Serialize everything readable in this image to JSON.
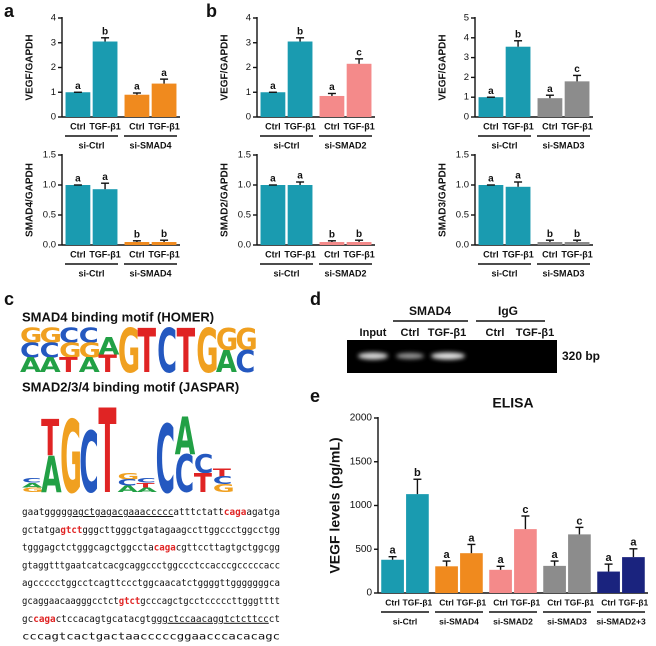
{
  "panel_labels": [
    "a",
    "b",
    "c",
    "d",
    "e"
  ],
  "chart_data": [
    {
      "type": "bar",
      "ylabel": "VEGF/GAPDH",
      "ylim": [
        0,
        4
      ],
      "yticks": [
        0,
        1,
        2,
        3,
        4
      ],
      "categories": [
        "Ctrl",
        "TGF-β1",
        "Ctrl",
        "TGF-β1"
      ],
      "groups": [
        "si-Ctrl",
        "si-SMAD4"
      ],
      "values": [
        1,
        3.05,
        0.9,
        1.35
      ],
      "errors": [
        0,
        0.15,
        0.07,
        0.18
      ],
      "letters": [
        "a",
        "b",
        "a",
        "a"
      ],
      "colors": [
        "#1a9bb0",
        "#1a9bb0",
        "#f08a1e",
        "#f08a1e"
      ]
    },
    {
      "type": "bar",
      "ylabel": "SMAD4/GAPDH",
      "ylim": [
        0,
        1.5
      ],
      "yticks": [
        {
          "value": 0,
          "label": "0.0"
        },
        {
          "value": 0.5,
          "label": "0.5"
        },
        {
          "value": 1,
          "label": "1.0"
        },
        {
          "value": 1.5,
          "label": "1.5"
        }
      ],
      "categories": [
        "Ctrl",
        "TGF-β1",
        "Ctrl",
        "TGF-β1"
      ],
      "groups": [
        "si-Ctrl",
        "si-SMAD4"
      ],
      "values": [
        1.0,
        0.93,
        0.05,
        0.05
      ],
      "errors": [
        0,
        0.1,
        0.02,
        0.03
      ],
      "letters": [
        "a",
        "a",
        "b",
        "b"
      ],
      "colors": [
        "#1a9bb0",
        "#1a9bb0",
        "#f08a1e",
        "#f08a1e"
      ]
    },
    {
      "type": "bar",
      "ylabel": "VEGF/GAPDH",
      "ylim": [
        0,
        4
      ],
      "yticks": [
        0,
        1,
        2,
        3,
        4
      ],
      "categories": [
        "Ctrl",
        "TGF-β1",
        "Ctrl",
        "TGF-β1"
      ],
      "groups": [
        "si-Ctrl",
        "si-SMAD2"
      ],
      "values": [
        1,
        3.05,
        0.85,
        2.15
      ],
      "errors": [
        0,
        0.15,
        0.1,
        0.2
      ],
      "letters": [
        "a",
        "b",
        "a",
        "c"
      ],
      "colors": [
        "#1a9bb0",
        "#1a9bb0",
        "#f48a8a",
        "#f48a8a"
      ]
    },
    {
      "type": "bar",
      "ylabel": "VEGF/GAPDH",
      "ylim": [
        0,
        5
      ],
      "yticks": [
        0,
        1,
        2,
        3,
        4,
        5
      ],
      "categories": [
        "Ctrl",
        "TGF-β1",
        "Ctrl",
        "TGF-β1"
      ],
      "groups": [
        "si-Ctrl",
        "si-SMAD3"
      ],
      "values": [
        1,
        3.55,
        0.95,
        1.8
      ],
      "errors": [
        0,
        0.3,
        0.15,
        0.3
      ],
      "letters": [
        "a",
        "b",
        "a",
        "c"
      ],
      "colors": [
        "#1a9bb0",
        "#1a9bb0",
        "#8c8c8c",
        "#8c8c8c"
      ]
    },
    {
      "type": "bar",
      "ylabel": "SMAD2/GAPDH",
      "ylim": [
        0,
        1.5
      ],
      "yticks": [
        {
          "value": 0,
          "label": "0.0"
        },
        {
          "value": 0.5,
          "label": "0.5"
        },
        {
          "value": 1,
          "label": "1.0"
        },
        {
          "value": 1.5,
          "label": "1.5"
        }
      ],
      "categories": [
        "Ctrl",
        "TGF-β1",
        "Ctrl",
        "TGF-β1"
      ],
      "groups": [
        "si-Ctrl",
        "si-SMAD2"
      ],
      "values": [
        1.0,
        1.0,
        0.05,
        0.05
      ],
      "errors": [
        0,
        0.05,
        0.02,
        0.03
      ],
      "letters": [
        "a",
        "a",
        "b",
        "b"
      ],
      "colors": [
        "#1a9bb0",
        "#1a9bb0",
        "#f48a8a",
        "#f48a8a"
      ]
    },
    {
      "type": "bar",
      "ylabel": "SMAD3/GAPDH",
      "ylim": [
        0,
        1.5
      ],
      "yticks": [
        {
          "value": 0,
          "label": "0.0"
        },
        {
          "value": 0.5,
          "label": "0.5"
        },
        {
          "value": 1,
          "label": "1.0"
        },
        {
          "value": 1.5,
          "label": "1.5"
        }
      ],
      "categories": [
        "Ctrl",
        "TGF-β1",
        "Ctrl",
        "TGF-β1"
      ],
      "groups": [
        "si-Ctrl",
        "si-SMAD3"
      ],
      "values": [
        1.0,
        0.97,
        0.05,
        0.05
      ],
      "errors": [
        0,
        0.08,
        0.03,
        0.03
      ],
      "letters": [
        "a",
        "a",
        "b",
        "b"
      ],
      "colors": [
        "#1a9bb0",
        "#1a9bb0",
        "#8c8c8c",
        "#8c8c8c"
      ]
    },
    {
      "type": "bar",
      "title": "ELISA",
      "ylabel": "VEGF levels (pg/mL)",
      "ylim": [
        0,
        2000
      ],
      "yticks": [
        0,
        500,
        1000,
        1500,
        2000
      ],
      "categories": [
        "Ctrl",
        "TGF-β1",
        "Ctrl",
        "TGF-β1",
        "Ctrl",
        "TGF-β1",
        "Ctrl",
        "TGF-β1",
        "Ctrl",
        "TGF-β1"
      ],
      "groups": [
        "si-Ctrl",
        "si-SMAD4",
        "si-SMAD2",
        "si-SMAD3",
        "si-SMAD2+3"
      ],
      "values": [
        380,
        1130,
        305,
        455,
        265,
        730,
        310,
        670,
        245,
        410
      ],
      "errors": [
        35,
        170,
        60,
        100,
        40,
        150,
        55,
        80,
        85,
        95
      ],
      "letters": [
        "a",
        "b",
        "a",
        "a",
        "a",
        "c",
        "a",
        "c",
        "a",
        "a"
      ],
      "colors": [
        "#1a9bb0",
        "#1a9bb0",
        "#f08a1e",
        "#f08a1e",
        "#f48a8a",
        "#f48a8a",
        "#8c8c8c",
        "#8c8c8c",
        "#1a237e",
        "#1a237e"
      ]
    }
  ],
  "letter_colors": {
    "A": "#22a045",
    "C": "#2458c0",
    "G": "#f0a020",
    "T": "#e02424"
  },
  "motifs": [
    {
      "title": "SMAD4 binding motif (HOMER)",
      "columns": [
        {
          "letters": [
            "G",
            "C",
            "A"
          ],
          "height": 2
        },
        {
          "letters": [
            "G",
            "C",
            "A"
          ],
          "height": 2
        },
        {
          "letters": [
            "C",
            "G",
            "T"
          ],
          "height": 2
        },
        {
          "letters": [
            "C",
            "G",
            "A"
          ],
          "height": 2
        },
        {
          "letters": [
            "A",
            "T"
          ],
          "height": 1.6
        },
        {
          "letters": [
            "G"
          ],
          "height": 2
        },
        {
          "letters": [
            "T"
          ],
          "height": 2
        },
        {
          "letters": [
            "C"
          ],
          "height": 2
        },
        {
          "letters": [
            "T"
          ],
          "height": 2
        },
        {
          "letters": [
            "G"
          ],
          "height": 2
        },
        {
          "letters": [
            "G",
            "A"
          ],
          "height": 2
        },
        {
          "letters": [
            "G",
            "C"
          ],
          "height": 2
        }
      ]
    },
    {
      "title": "SMAD2/3/4 binding motif (JASPAR)",
      "columns": [
        {
          "letters": [
            "C",
            "A",
            "G"
          ],
          "height": 0.3
        },
        {
          "letters": [
            "T",
            "A"
          ],
          "height": 1.55
        },
        {
          "letters": [
            "G"
          ],
          "height": 1.55
        },
        {
          "letters": [
            "C"
          ],
          "height": 1.3
        },
        {
          "letters": [
            "T"
          ],
          "height": 1.8
        },
        {
          "letters": [
            "G",
            "C",
            "A"
          ],
          "height": 0.4
        },
        {
          "letters": [
            "C",
            "T",
            "A"
          ],
          "height": 0.3
        },
        {
          "letters": [
            "C"
          ],
          "height": 1.45
        },
        {
          "letters": [
            "A",
            "C"
          ],
          "height": 1.6
        },
        {
          "letters": [
            "C",
            "T"
          ],
          "height": 0.8
        },
        {
          "letters": [
            "T",
            "C",
            "G"
          ],
          "height": 0.5
        }
      ]
    }
  ],
  "sequence": [
    [
      "gaatggggg",
      {
        "text": "agctgagacgaaaccccc",
        "style": "underline"
      },
      "atttctatt",
      {
        "text": "caga",
        "style": "red"
      },
      "agatga"
    ],
    [
      "gctatga",
      {
        "text": "gtct",
        "style": "red"
      },
      "gggcttgggctgatagaagccttggccctggcctgg"
    ],
    [
      "tgggagctctgggcagctggccta",
      {
        "text": "caga",
        "style": "red"
      },
      "cgttccttagtgctggcgg"
    ],
    [
      "gtaggtttgaatcatcacgcaggccctggccctccacccgcccccacc"
    ],
    [
      "agccccctggcctcagttccctggcaacatctggggttgggggggca"
    ],
    [
      "gcaggaacaagggcctct",
      {
        "text": "gtct",
        "style": "red"
      },
      "gcccagctgcctcccccttgggtttt"
    ],
    [
      "gc",
      {
        "text": "caga",
        "style": "red"
      },
      "ctccacagtgcatacgtg",
      {
        "text": "ggctccaacaggtctcttcc",
        "style": "underline"
      },
      "ct"
    ],
    [
      "cccagtcactgactaacccccggaacccacacagc"
    ]
  ],
  "gel": {
    "groups": [
      "SMAD4",
      "IgG"
    ],
    "lanes": [
      "Input",
      "Ctrl",
      "TGF-β1",
      "Ctrl",
      "TGF-β1"
    ],
    "size_label": "320 bp"
  }
}
